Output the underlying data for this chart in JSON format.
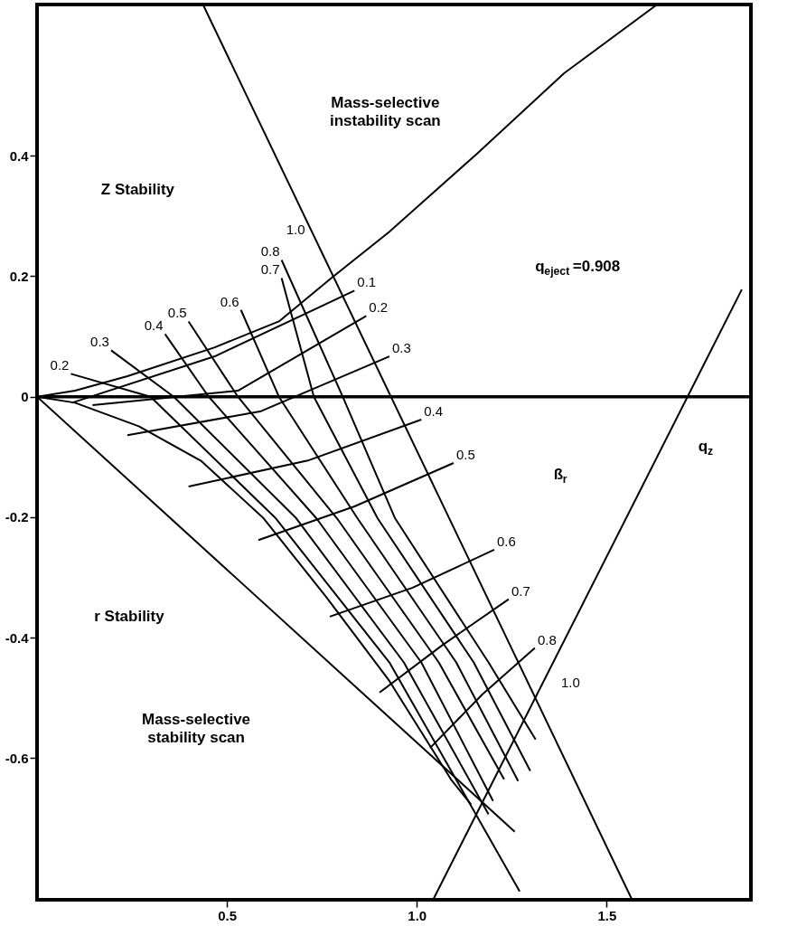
{
  "chart_data": {
    "type": "line",
    "xlabel": "q$_{z}$",
    "xlim": [
      0,
      1.88
    ],
    "ylim": [
      -0.835,
      0.651
    ],
    "xticks": [
      0.5,
      {
        "value": 1,
        "label": "1.0"
      },
      1.5
    ],
    "yticks": [
      0.4,
      0.2,
      0,
      -0.2,
      -0.4,
      -0.6
    ],
    "grid": false,
    "ref_lines": [
      {
        "axis": "y",
        "value": 0
      }
    ],
    "annotations": [
      "Mass-selective instability scan",
      "Z Stability",
      "r Stability",
      "Mass-selective stability scan",
      "q$_{eject}$=0.908",
      "ß$_{r}$"
    ],
    "series": [
      {
        "color": "#000000",
        "x": [
          0,
          0.1,
          0.238,
          0.468,
          0.637,
          0.775,
          0.928,
          1.158,
          1.388,
          1.633
        ],
        "values": [
          0,
          0.01,
          0.034,
          0.082,
          0.125,
          0.197,
          0.274,
          0.403,
          0.537,
          0.651
        ]
      },
      {
        "name": "1.0",
        "color": "#000000",
        "x": [
          0.437,
          1.567
        ],
        "values": [
          0.651,
          -0.835
        ]
      },
      {
        "color": "#000000",
        "x": [
          0,
          1.258
        ],
        "values": [
          0,
          -0.722
        ]
      },
      {
        "name": "1.0",
        "color": "#000000",
        "x": [
          1.043,
          1.856
        ],
        "values": [
          -0.835,
          0.178
        ]
      },
      {
        "color": "#000000",
        "x": [
          0,
          0.1,
          0.268,
          0.433,
          0.597,
          0.761,
          0.926,
          1.09,
          1.143
        ],
        "values": [
          0,
          -0.01,
          -0.049,
          -0.107,
          -0.202,
          -0.332,
          -0.47,
          -0.635,
          -0.677
        ]
      },
      {
        "name": "0.1",
        "color": "#000000",
        "x": [
          0.836,
          0.468,
          0.092
        ],
        "values": [
          0.176,
          0.067,
          -0.01
        ]
      },
      {
        "name": "0.2",
        "color": "#000000",
        "x": [
          0.867,
          0.529,
          0.146
        ],
        "values": [
          0.134,
          0.01,
          -0.014
        ]
      },
      {
        "name": "0.3",
        "color": "#000000",
        "x": [
          0.928,
          0.59,
          0.238
        ],
        "values": [
          0.067,
          -0.024,
          -0.064
        ]
      },
      {
        "name": "0.4",
        "color": "#000000",
        "x": [
          1.012,
          0.713,
          0.399
        ],
        "values": [
          -0.038,
          -0.106,
          -0.149
        ]
      },
      {
        "name": "0.5",
        "color": "#000000",
        "x": [
          1.097,
          0.836,
          0.583
        ],
        "values": [
          -0.11,
          -0.182,
          -0.238
        ]
      },
      {
        "name": "0.6",
        "color": "#000000",
        "x": [
          1.204,
          0.989,
          0.771
        ],
        "values": [
          -0.254,
          -0.317,
          -0.365
        ]
      },
      {
        "name": "0.7",
        "color": "#000000",
        "x": [
          1.242,
          1.066,
          0.902
        ],
        "values": [
          -0.336,
          -0.413,
          -0.491
        ]
      },
      {
        "name": "0.8",
        "color": "#000000",
        "x": [
          1.311,
          1.173,
          1.035
        ],
        "values": [
          -0.417,
          -0.494,
          -0.583
        ]
      },
      {
        "name": "0.2",
        "color": "#000000",
        "x": [
          0.089,
          0.299,
          0.629,
          0.928,
          1.271
        ],
        "values": [
          0.038,
          0,
          -0.202,
          -0.441,
          -0.821
        ]
      },
      {
        "name": "0.3",
        "color": "#000000",
        "x": [
          0.195,
          0.36,
          0.683,
          0.966,
          1.189
        ],
        "values": [
          0.077,
          0,
          -0.202,
          -0.441,
          -0.693
        ]
      },
      {
        "name": "0.4",
        "color": "#000000",
        "x": [
          0.337,
          0.452,
          0.736,
          1.012,
          1.201
        ],
        "values": [
          0.104,
          0,
          -0.202,
          -0.441,
          -0.671
        ]
      },
      {
        "name": "0.5",
        "color": "#000000",
        "x": [
          0.399,
          0.529,
          0.79,
          1.058,
          1.23
        ],
        "values": [
          0.125,
          0,
          -0.202,
          -0.441,
          -0.635
        ]
      },
      {
        "name": "0.6",
        "color": "#000000",
        "x": [
          0.537,
          0.637,
          0.844,
          1.104,
          1.267
        ],
        "values": [
          0.144,
          0,
          -0.202,
          -0.441,
          -0.638
        ]
      },
      {
        "name": "0.7",
        "color": "#000000",
        "x": [
          0.644,
          0.729,
          0.897,
          1.15,
          1.299
        ],
        "values": [
          0.197,
          0,
          -0.202,
          -0.441,
          -0.621
        ]
      },
      {
        "name": "0.8",
        "color": "#000000",
        "x": [
          0.644,
          0.805,
          0.943,
          1.189,
          1.313
        ],
        "values": [
          0.227,
          0,
          -0.202,
          -0.441,
          -0.569
        ]
      }
    ]
  }
}
